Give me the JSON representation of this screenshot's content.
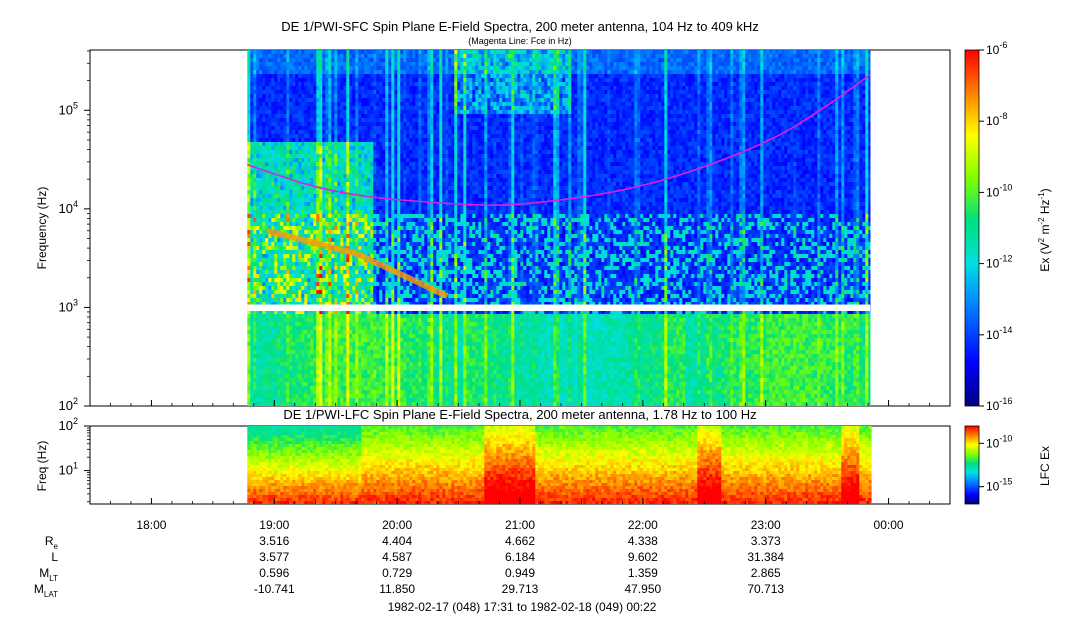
{
  "chart_data": [
    {
      "type": "heatmap",
      "title": "DE 1/PWI-SFC  Spin Plane E-Field Spectra, 200 meter antenna, 104 Hz to 409 kHz",
      "subtitle": "(Magenta Line: Fce in Hz)",
      "ylabel": "Frequency (Hz)",
      "y_scale": "log",
      "ylim": [
        100,
        409000
      ],
      "y_ticks": [
        {
          "value": 100,
          "base": "10",
          "exp": "2"
        },
        {
          "value": 1000,
          "base": "10",
          "exp": "3"
        },
        {
          "value": 10000,
          "base": "10",
          "exp": "4"
        },
        {
          "value": 100000,
          "base": "10",
          "exp": "5"
        }
      ],
      "x_range_hours": [
        17.5,
        24.5
      ],
      "data_start_hour": 18.78,
      "data_end_hour": 23.85,
      "data_gap_hz": [
        920,
        1070
      ],
      "colorbar": {
        "label_prefix": "Ex (V",
        "label_sup1": "2",
        "label_mid": " m",
        "label_sup2": "-2",
        "label_mid2": " Hz",
        "label_sup3": "-1",
        "label_suffix": ")",
        "scale": "log",
        "range": [
          1e-16,
          1e-06
        ],
        "ticks": [
          {
            "value": 1e-06,
            "base": "10",
            "exp": "-6"
          },
          {
            "value": 1e-08,
            "base": "10",
            "exp": "-8"
          },
          {
            "value": 1e-10,
            "base": "10",
            "exp": "-10"
          },
          {
            "value": 1e-12,
            "base": "10",
            "exp": "-12"
          },
          {
            "value": 1e-14,
            "base": "10",
            "exp": "-14"
          },
          {
            "value": 1e-16,
            "base": "10",
            "exp": "-16"
          }
        ]
      },
      "fce_line": {
        "color": "#e020e0",
        "points": [
          [
            18.78,
            28000
          ],
          [
            19.5,
            14000
          ],
          [
            20.5,
            11000
          ],
          [
            21.0,
            10800
          ],
          [
            22.0,
            16000
          ],
          [
            23.0,
            45000
          ],
          [
            23.5,
            110000
          ],
          [
            23.85,
            230000
          ]
        ]
      }
    },
    {
      "type": "heatmap",
      "title": "DE 1/PWI-LFC  Spin Plane E-Field Spectra, 200 meter antenna, 1.78 Hz to 100 Hz",
      "ylabel": "Freq (Hz)",
      "y_scale": "log",
      "ylim": [
        1.78,
        100
      ],
      "y_ticks": [
        {
          "value": 100,
          "base": "10",
          "exp": "2"
        },
        {
          "value": 10,
          "base": "10",
          "exp": "1"
        }
      ],
      "colorbar": {
        "label": "LFC Ex",
        "scale": "log",
        "range": [
          1e-17,
          1e-08
        ],
        "ticks": [
          {
            "value": 1e-10,
            "base": "10",
            "exp": "-10"
          },
          {
            "value": 1e-15,
            "base": "10",
            "exp": "-15"
          }
        ]
      }
    }
  ],
  "time_axis": {
    "ticks": [
      {
        "hour": 18,
        "label": "18:00"
      },
      {
        "hour": 19,
        "label": "19:00"
      },
      {
        "hour": 20,
        "label": "20:00"
      },
      {
        "hour": 21,
        "label": "21:00"
      },
      {
        "hour": 22,
        "label": "22:00"
      },
      {
        "hour": 23,
        "label": "23:00"
      },
      {
        "hour": 24,
        "label": "00:00"
      }
    ]
  },
  "ephemeris": {
    "rows": [
      {
        "label": "R",
        "sub": "e",
        "values": [
          "3.516",
          "4.404",
          "4.662",
          "4.338",
          "3.373"
        ]
      },
      {
        "label": "L",
        "sub": "",
        "values": [
          "3.577",
          "4.587",
          "6.184",
          "9.602",
          "31.384"
        ]
      },
      {
        "label": "M",
        "sub": "LT",
        "values": [
          "0.596",
          "0.729",
          "0.949",
          "1.359",
          "2.865"
        ]
      },
      {
        "label": "M",
        "sub": "LAT",
        "values": [
          "-10.741",
          "11.850",
          "29.713",
          "47.950",
          "70.713"
        ]
      }
    ],
    "value_hours": [
      19,
      20,
      21,
      22,
      23
    ]
  },
  "time_range_label": "1982-02-17 (048) 17:31 to 1982-02-18 (049) 00:22"
}
